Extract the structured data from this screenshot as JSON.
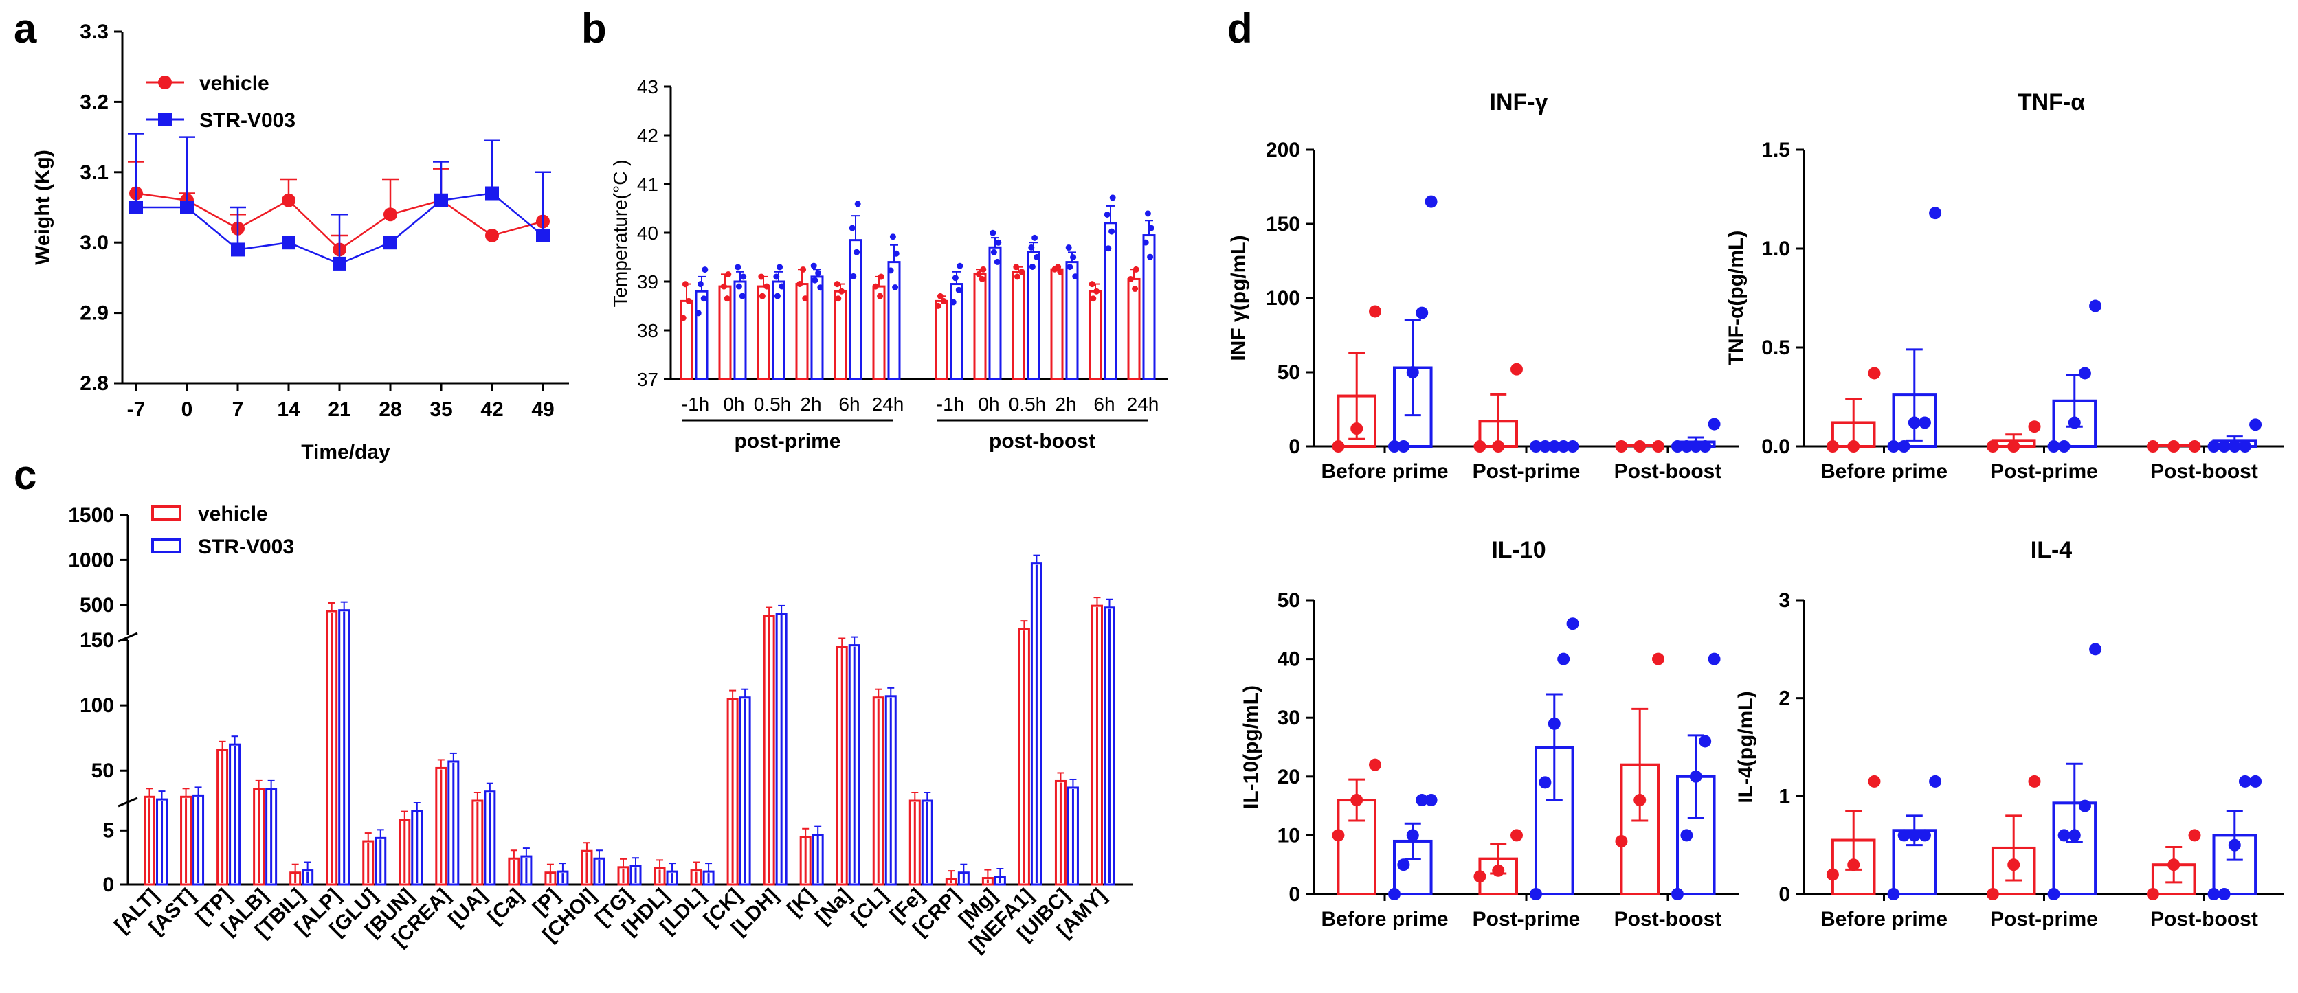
{
  "colors": {
    "vehicle": "#ee1c25",
    "str": "#1a1aee",
    "axis": "#000000"
  },
  "panel_labels": {
    "a": "a",
    "b": "b",
    "c": "c",
    "d": "d"
  },
  "chart_data": [
    {
      "id": "a",
      "type": "line",
      "xlabel": "Time/day",
      "ylabel": "Weight (Kg)",
      "x": [
        -7,
        0,
        7,
        14,
        21,
        28,
        35,
        42,
        49
      ],
      "ylim": [
        2.8,
        3.3
      ],
      "yticks": [
        "2.8",
        "2.9",
        "3.0",
        "3.1",
        "3.2",
        "3.3"
      ],
      "xticks": [
        "-7",
        "0",
        "7",
        "14",
        "21",
        "28",
        "35",
        "42",
        "49"
      ],
      "series": [
        {
          "name": "vehicle",
          "values": [
            3.07,
            3.06,
            3.02,
            3.06,
            2.99,
            3.04,
            3.06,
            3.01,
            3.03
          ],
          "err": [
            0.045,
            0.01,
            0.02,
            0.03,
            0.02,
            0.05,
            0.045,
            0.0,
            0.07
          ]
        },
        {
          "name": "STR-V003",
          "values": [
            3.05,
            3.05,
            2.99,
            3.0,
            2.97,
            3.0,
            3.06,
            3.07,
            3.01
          ],
          "err": [
            0.105,
            0.1,
            0.06,
            0.0,
            0.07,
            0.0,
            0.055,
            0.075,
            0.09
          ]
        }
      ]
    },
    {
      "id": "b",
      "type": "bar",
      "ylabel": "Temperature(°C )",
      "ylim": [
        37,
        43
      ],
      "yticks": [
        "37",
        "38",
        "39",
        "40",
        "41",
        "42",
        "43"
      ],
      "categories": [
        "-1h",
        "0h",
        "0.5h",
        "2h",
        "6h",
        "24h",
        "-1h",
        "0h",
        "0.5h",
        "2h",
        "6h",
        "24h"
      ],
      "groups": [
        "post-prime",
        "post-boost"
      ],
      "series": [
        {
          "name": "vehicle",
          "values": [
            38.6,
            38.9,
            38.9,
            38.95,
            38.8,
            38.9,
            38.6,
            39.15,
            39.2,
            39.25,
            38.8,
            39.05
          ],
          "err": [
            0.35,
            0.25,
            0.2,
            0.3,
            0.15,
            0.2,
            0.1,
            0.1,
            0.1,
            0.05,
            0.15,
            0.2
          ]
        },
        {
          "name": "STR-V003",
          "values": [
            38.8,
            39.0,
            39.0,
            39.1,
            39.85,
            39.4,
            38.95,
            39.7,
            39.6,
            39.4,
            40.2,
            39.95
          ],
          "err": [
            0.3,
            0.2,
            0.2,
            0.15,
            0.5,
            0.35,
            0.25,
            0.2,
            0.2,
            0.2,
            0.35,
            0.3
          ]
        }
      ]
    },
    {
      "id": "c",
      "type": "bar",
      "legend": [
        "vehicle",
        "STR-V003"
      ],
      "yticks_bottom": [
        "0",
        "5"
      ],
      "yticks_mid": [
        "50",
        "100",
        "150"
      ],
      "yticks_top": [
        "500",
        "1000",
        "1500"
      ],
      "categories": [
        "[ALT]",
        "[AST]",
        "[TP]",
        "[ALB]",
        "[TBIL]",
        "[ALP]",
        "[GLU]",
        "[BUN]",
        "[CREA]",
        "[UA]",
        "[Ca]",
        "[P]",
        "[CHOl]",
        "[TG]",
        "[HDL]",
        "[LDL]",
        "[CK]",
        "[LDH]",
        "[K]",
        "[Na]",
        "[CL]",
        "[Fe]",
        "[CRP]",
        "[Mg]",
        "[NEFA1]",
        "[UIBC]",
        "[AMY]"
      ],
      "series": [
        {
          "name": "vehicle",
          "values": [
            30,
            30,
            66,
            36,
            1.1,
            430,
            4.0,
            6.0,
            52,
            25,
            2.4,
            1.1,
            3.1,
            1.6,
            1.5,
            1.3,
            105,
            380,
            4.4,
            145,
            106,
            22,
            0.5,
            0.6,
            230,
            42,
            490
          ]
        },
        {
          "name": "STR-V003",
          "values": [
            28,
            31,
            70,
            36,
            1.3,
            440,
            4.3,
            6.8,
            57,
            34,
            2.6,
            1.2,
            2.4,
            1.7,
            1.2,
            1.2,
            106,
            400,
            4.6,
            146,
            107,
            24,
            1.1,
            0.7,
            960,
            37,
            470
          ]
        }
      ]
    },
    {
      "id": "d1",
      "type": "bar",
      "title": "INF-γ",
      "ylabel": "INF γ(pg/mL)",
      "ylim": [
        0,
        200
      ],
      "yticks": [
        "0",
        "50",
        "100",
        "150",
        "200"
      ],
      "categories": [
        "Before prime",
        "Post-prime",
        "Post-boost"
      ],
      "series": [
        {
          "name": "vehicle",
          "values": [
            34,
            17,
            0
          ],
          "err": [
            29,
            18,
            0
          ],
          "points": [
            [
              0,
              12,
              91
            ],
            [
              0,
              0,
              52
            ],
            [
              0,
              0,
              0
            ]
          ]
        },
        {
          "name": "STR-V003",
          "values": [
            53,
            0,
            3
          ],
          "err": [
            32,
            0,
            3
          ],
          "points": [
            [
              0,
              0,
              50,
              90,
              165
            ],
            [
              0,
              0,
              0,
              0,
              0
            ],
            [
              0,
              0,
              0,
              0,
              15
            ]
          ]
        }
      ]
    },
    {
      "id": "d2",
      "type": "bar",
      "title": "TNF-α",
      "ylabel": "TNF-α(pg/mL)",
      "ylim": [
        0,
        1.5
      ],
      "yticks": [
        "0.0",
        "0.5",
        "1.0",
        "1.5"
      ],
      "categories": [
        "Before prime",
        "Post-prime",
        "Post-boost"
      ],
      "series": [
        {
          "name": "vehicle",
          "values": [
            0.12,
            0.03,
            0
          ],
          "err": [
            0.12,
            0.03,
            0
          ],
          "points": [
            [
              0,
              0,
              0.37
            ],
            [
              0,
              0,
              0.1
            ],
            [
              0,
              0,
              0
            ]
          ]
        },
        {
          "name": "STR-V003",
          "values": [
            0.26,
            0.23,
            0.03
          ],
          "err": [
            0.23,
            0.13,
            0.02
          ],
          "points": [
            [
              0,
              0,
              0.12,
              0.12,
              1.18
            ],
            [
              0,
              0,
              0.12,
              0.37,
              0.71
            ],
            [
              0,
              0,
              0,
              0,
              0.11
            ]
          ]
        }
      ]
    },
    {
      "id": "d3",
      "type": "bar",
      "title": "IL-10",
      "ylabel": "IL-10(pg/mL)",
      "ylim": [
        0,
        50
      ],
      "yticks": [
        "0",
        "10",
        "20",
        "30",
        "40",
        "50"
      ],
      "categories": [
        "Before prime",
        "Post-prime",
        "Post-boost"
      ],
      "series": [
        {
          "name": "vehicle",
          "values": [
            16,
            6,
            22
          ],
          "err": [
            3.5,
            2.5,
            9.5
          ],
          "points": [
            [
              10,
              16,
              22
            ],
            [
              3,
              4,
              10
            ],
            [
              9,
              16,
              40
            ]
          ]
        },
        {
          "name": "STR-V003",
          "values": [
            9,
            25,
            20
          ],
          "err": [
            3,
            9,
            7
          ],
          "points": [
            [
              0,
              5,
              10,
              16,
              16
            ],
            [
              0,
              19,
              29,
              40,
              46
            ],
            [
              0,
              10,
              20,
              26,
              40
            ]
          ]
        }
      ]
    },
    {
      "id": "d4",
      "type": "bar",
      "title": "IL-4",
      "ylabel": "IL-4(pg/mL)",
      "ylim": [
        0,
        3
      ],
      "yticks": [
        "0",
        "1",
        "2",
        "3"
      ],
      "categories": [
        "Before prime",
        "Post-prime",
        "Post-boost"
      ],
      "series": [
        {
          "name": "vehicle",
          "values": [
            0.55,
            0.47,
            0.3
          ],
          "err": [
            0.3,
            0.33,
            0.18
          ],
          "points": [
            [
              0.2,
              0.3,
              1.15
            ],
            [
              0,
              0.3,
              1.15
            ],
            [
              0,
              0.3,
              0.6
            ]
          ]
        },
        {
          "name": "STR-V003",
          "values": [
            0.65,
            0.93,
            0.6
          ],
          "err": [
            0.15,
            0.4,
            0.25
          ],
          "points": [
            [
              0,
              0.6,
              0.6,
              0.6,
              1.15
            ],
            [
              0,
              0.6,
              0.6,
              0.9,
              2.5
            ],
            [
              0,
              0,
              0.5,
              1.15,
              1.15
            ]
          ]
        }
      ]
    }
  ]
}
